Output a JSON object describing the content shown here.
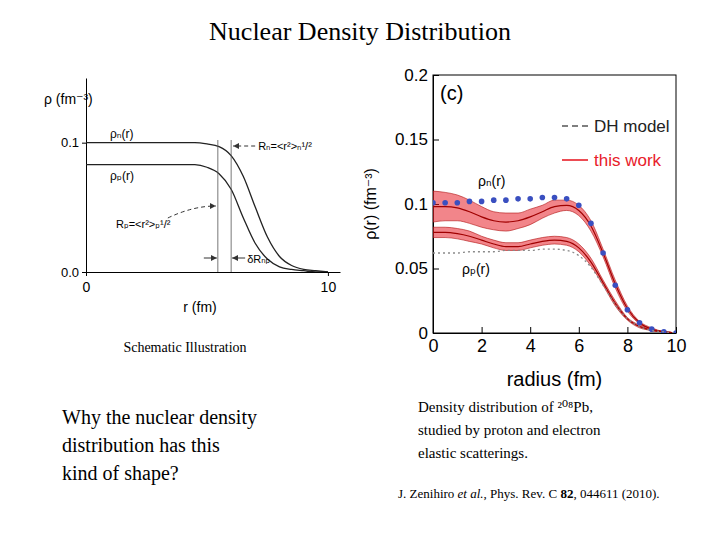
{
  "slide": {
    "title": "Nuclear Density Distribution",
    "question": [
      "Why the nuclear density",
      "distribution has this",
      "kind of shape?"
    ]
  },
  "chart_data": [
    {
      "type": "line",
      "caption": "Schematic Illustration",
      "y_label": "ρ (fm⁻³)",
      "x_label": "r (fm)",
      "x": [
        0,
        0.5,
        1,
        1.5,
        2,
        2.5,
        3,
        3.5,
        4,
        4.5,
        5,
        5.5,
        6,
        6.5,
        7,
        7.5,
        8,
        8.5,
        9,
        9.5,
        10
      ],
      "xlim": [
        0,
        10.5
      ],
      "xticks": [
        0,
        10
      ],
      "ylim": [
        0,
        0.15
      ],
      "yticks": [
        {
          "value": 0,
          "label": "0.0"
        },
        0.1
      ],
      "series": [
        {
          "name": "ρₙ(r)",
          "color": "#222222",
          "line_style": "solid",
          "values": [
            0.1,
            0.1,
            0.1,
            0.1,
            0.1,
            0.1,
            0.1,
            0.1,
            0.1,
            0.1,
            0.099,
            0.097,
            0.09,
            0.074,
            0.05,
            0.027,
            0.012,
            0.005,
            0.002,
            0.001,
            0.0
          ]
        },
        {
          "name": "ρₚ(r)",
          "color": "#222222",
          "line_style": "solid",
          "values": [
            0.083,
            0.083,
            0.083,
            0.083,
            0.083,
            0.083,
            0.083,
            0.083,
            0.083,
            0.083,
            0.081,
            0.076,
            0.064,
            0.042,
            0.022,
            0.01,
            0.004,
            0.002,
            0.001,
            0.0,
            0.0
          ]
        }
      ],
      "annotations": [
        {
          "text": "Rₙ=<r²>ₙ¹/²",
          "x": 6.0
        },
        {
          "text": "Rₚ=<r²>ₚ¹/²",
          "x": 5.45
        }
      ],
      "difference_label": "δRₙₚ"
    },
    {
      "type": "line",
      "panel_label": "(c)",
      "caption": [
        "Density distribution of ²⁰⁸Pb,",
        "studied by proton and electron",
        "elastic scatterings."
      ],
      "citation": [
        "J. Zenihiro ",
        "et al.",
        ", Phys. Rev. C ",
        "82",
        ", 044611 (2010)."
      ],
      "y_label": "ρ(r) (fm⁻³)",
      "x_label": "radius (fm)",
      "x": [
        0,
        0.5,
        1,
        1.5,
        2,
        2.5,
        3,
        3.5,
        4,
        4.5,
        5,
        5.5,
        6,
        6.5,
        7,
        7.5,
        8,
        8.5,
        9,
        9.5,
        10
      ],
      "xlim": [
        0,
        10
      ],
      "xticks": [
        0,
        2,
        4,
        6,
        8,
        10
      ],
      "ylim": [
        0,
        0.2
      ],
      "yticks": [
        0,
        0.05,
        0.1,
        0.15,
        0.2
      ],
      "legend": "upper right",
      "series": [
        {
          "name": "this work",
          "type": "band",
          "color": "#e8202a",
          "line_style": "solid",
          "values": [
            0.098,
            0.098,
            0.097,
            0.094,
            0.09,
            0.087,
            0.086,
            0.087,
            0.09,
            0.094,
            0.098,
            0.099,
            0.095,
            0.083,
            0.062,
            0.038,
            0.019,
            0.008,
            0.003,
            0.001,
            0.0
          ],
          "errors": [
            0.012,
            0.011,
            0.01,
            0.009,
            0.008,
            0.007,
            0.007,
            0.006,
            0.006,
            0.005,
            0.005,
            0.004,
            0.004,
            0.004,
            0.003,
            0.003,
            0.002,
            0.001,
            0.001,
            0.0,
            0.0
          ]
        },
        {
          "name": "this work",
          "type": "band",
          "color": "#e8202a",
          "line_style": "solid",
          "values": [
            0.078,
            0.078,
            0.077,
            0.075,
            0.072,
            0.069,
            0.067,
            0.067,
            0.069,
            0.071,
            0.072,
            0.071,
            0.066,
            0.055,
            0.039,
            0.023,
            0.011,
            0.005,
            0.002,
            0.001,
            0.0
          ],
          "errors": [
            0.004,
            0.004,
            0.004,
            0.004,
            0.003,
            0.003,
            0.003,
            0.003,
            0.003,
            0.003,
            0.003,
            0.003,
            0.003,
            0.003,
            0.002,
            0.002,
            0.001,
            0.001,
            0.0,
            0.0,
            0.0
          ]
        },
        {
          "name": "DH model",
          "type": "line",
          "marker": "circle",
          "line_style": "none",
          "color": "#3a4fc0",
          "values": [
            0.101,
            0.101,
            0.101,
            0.102,
            0.102,
            0.103,
            0.103,
            0.104,
            0.104,
            0.105,
            0.105,
            0.104,
            0.099,
            0.085,
            0.062,
            0.037,
            0.018,
            0.008,
            0.003,
            0.001,
            0.0
          ]
        },
        {
          "name": "DH model",
          "type": "line",
          "line_style": "dotted",
          "color": "#8a8a8a",
          "values": [
            0.062,
            0.062,
            0.062,
            0.063,
            0.063,
            0.063,
            0.064,
            0.064,
            0.064,
            0.065,
            0.065,
            0.064,
            0.06,
            0.051,
            0.037,
            0.022,
            0.011,
            0.005,
            0.002,
            0.001,
            0.0
          ]
        }
      ],
      "annotations": [
        "ρₙ(r)",
        "ρₚ(r)"
      ]
    }
  ]
}
